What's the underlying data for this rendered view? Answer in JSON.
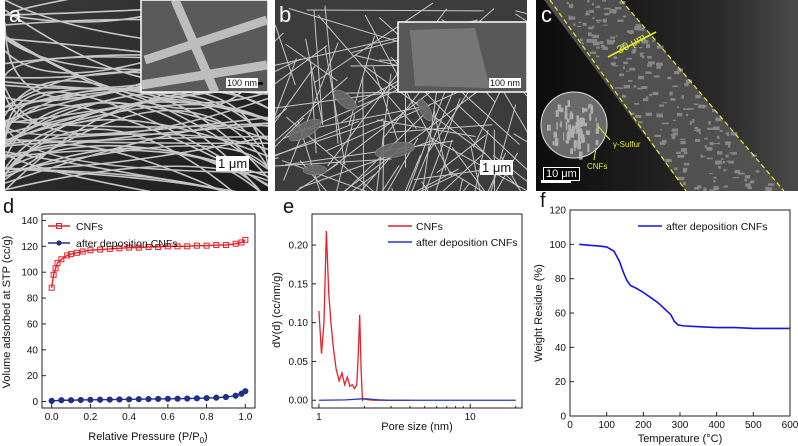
{
  "panels": {
    "a": {
      "letter": "a",
      "scale_inset": "100 nm",
      "scale_main": "1 μm"
    },
    "b": {
      "letter": "b",
      "scale_inset": "100 nm",
      "scale_main": "1 μm"
    },
    "c": {
      "letter": "c",
      "scale_thickness": "30 μm",
      "scale_main": "10 μm",
      "label_sulfur": "γ-Sulfur",
      "label_cnfs": "CNFs"
    },
    "d": {
      "letter": "d"
    },
    "e": {
      "letter": "e"
    },
    "f": {
      "letter": "f"
    }
  },
  "chart_data": [
    {
      "id": "d",
      "type": "scatter",
      "xlabel": "Relative Pressure (P/P",
      "xlabel_sub": "0",
      "xlabel_end": ")",
      "ylabel": "Volume adsorbed at STP (cc/g)",
      "xlim": [
        -0.05,
        1.05
      ],
      "ylim": [
        -5,
        145
      ],
      "xticks": [
        0.0,
        0.2,
        0.4,
        0.6,
        0.8,
        1.0
      ],
      "xtick_labels": [
        "0.0",
        "0.2",
        "0.4",
        "0.6",
        "0.8",
        "1.0"
      ],
      "yticks": [
        0,
        20,
        40,
        60,
        80,
        100,
        120,
        140
      ],
      "ytick_labels": [
        "0",
        "20",
        "40",
        "60",
        "80",
        "100",
        "120",
        "140"
      ],
      "legend_position": "top-left",
      "series": [
        {
          "name": "CNFs",
          "color": "#e8202a",
          "marker": "square",
          "x": [
            0.0,
            0.01,
            0.02,
            0.03,
            0.05,
            0.08,
            0.1,
            0.13,
            0.16,
            0.2,
            0.25,
            0.3,
            0.35,
            0.4,
            0.45,
            0.5,
            0.55,
            0.6,
            0.65,
            0.7,
            0.75,
            0.8,
            0.85,
            0.9,
            0.95,
            0.98,
            1.0
          ],
          "y": [
            88,
            98,
            103,
            107,
            110,
            113,
            114,
            115,
            116,
            117,
            117.5,
            118,
            118.5,
            119,
            119,
            119.5,
            119.5,
            120,
            120,
            120,
            120.5,
            120.5,
            121,
            121,
            122,
            123,
            125
          ]
        },
        {
          "name": "after deposition CNFs",
          "color": "#1f2f8a",
          "marker": "circle",
          "x": [
            0.0,
            0.05,
            0.1,
            0.15,
            0.2,
            0.25,
            0.3,
            0.35,
            0.4,
            0.45,
            0.5,
            0.55,
            0.6,
            0.65,
            0.7,
            0.75,
            0.8,
            0.85,
            0.9,
            0.95,
            0.98,
            1.0
          ],
          "y": [
            0.5,
            1,
            1,
            1.2,
            1.3,
            1.4,
            1.5,
            1.6,
            1.7,
            1.8,
            1.9,
            2,
            2.1,
            2.2,
            2.3,
            2.5,
            2.7,
            3,
            3.5,
            4.5,
            6,
            8
          ]
        }
      ]
    },
    {
      "id": "e",
      "type": "line",
      "xlabel": "Pore size (nm)",
      "ylabel": "dV(d) (cc/nm/g)",
      "xscale": "log",
      "xlim": [
        0.9,
        22
      ],
      "ylim": [
        -0.01,
        0.24
      ],
      "xticks": [
        1,
        10
      ],
      "xtick_labels": [
        "1",
        "10"
      ],
      "yticks": [
        0.0,
        0.05,
        0.1,
        0.15,
        0.2
      ],
      "ytick_labels": [
        "0.00",
        "0.05",
        "0.10",
        "0.15",
        "0.20"
      ],
      "legend_position": "top-right",
      "series": [
        {
          "name": "CNFs",
          "color": "#e8202a",
          "x": [
            1.0,
            1.04,
            1.08,
            1.12,
            1.16,
            1.2,
            1.25,
            1.3,
            1.36,
            1.42,
            1.48,
            1.54,
            1.6,
            1.66,
            1.72,
            1.78,
            1.82,
            1.86,
            1.9,
            1.94,
            1.98,
            2.05,
            2.3,
            4.0
          ],
          "y": [
            0.115,
            0.06,
            0.1,
            0.218,
            0.14,
            0.1,
            0.065,
            0.04,
            0.025,
            0.035,
            0.02,
            0.03,
            0.018,
            0.02,
            0.015,
            0.02,
            0.06,
            0.11,
            0.04,
            0.0,
            0.002,
            0.001,
            0.0,
            0.0
          ]
        },
        {
          "name": "after deposition CNFs",
          "color": "#2a3bb0",
          "x": [
            1.0,
            1.5,
            2.0,
            2.5,
            3.0,
            5.0,
            10.0,
            20.0
          ],
          "y": [
            0.0,
            0.0005,
            0.002,
            0.0005,
            0.0,
            0.0,
            0.0,
            0.0
          ]
        }
      ]
    },
    {
      "id": "f",
      "type": "line",
      "xlabel": "Temperature (°C)",
      "ylabel": "Weight Residue (%)",
      "xlim": [
        0,
        600
      ],
      "ylim": [
        0,
        120
      ],
      "xticks": [
        0,
        100,
        200,
        300,
        400,
        500,
        600
      ],
      "xtick_labels": [
        "0",
        "100",
        "200",
        "300",
        "400",
        "500",
        "600"
      ],
      "yticks": [
        0,
        20,
        40,
        60,
        80,
        100,
        120
      ],
      "ytick_labels": [
        "0",
        "20",
        "40",
        "60",
        "80",
        "100",
        "120"
      ],
      "legend_position": "top-right",
      "series": [
        {
          "name": "after deposition CNFs",
          "color": "#1414e6",
          "x": [
            25,
            50,
            80,
            100,
            120,
            135,
            145,
            155,
            165,
            180,
            200,
            220,
            240,
            255,
            265,
            275,
            285,
            295,
            310,
            350,
            400,
            450,
            500,
            550,
            600
          ],
          "y": [
            100,
            99.5,
            99,
            98.5,
            96,
            90,
            84,
            79,
            76,
            74.5,
            72,
            69,
            66,
            63,
            61,
            59,
            55,
            53,
            52.5,
            52,
            51.5,
            51.5,
            51,
            51,
            51
          ]
        }
      ]
    }
  ]
}
